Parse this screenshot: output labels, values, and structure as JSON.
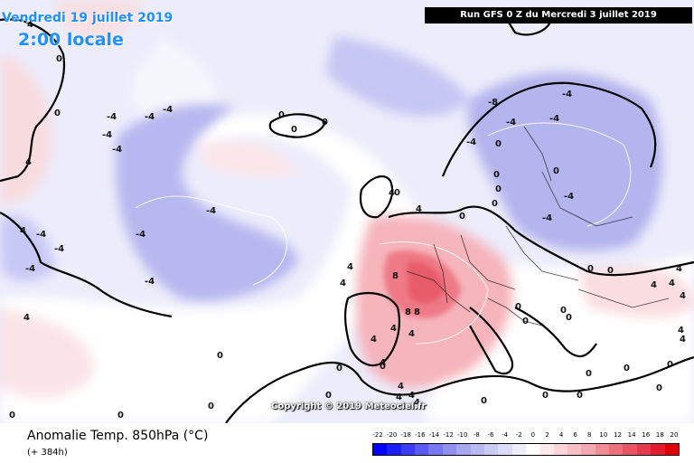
{
  "header": {
    "valid_date": "Vendredi 19 juillet 2019",
    "valid_time": "2:00 locale",
    "run_info": "Run GFS 0 Z du Mercredi 3 juillet 2019"
  },
  "copyright": "Copyright © 2019 Meteociel.fr",
  "footer": {
    "title": "Anomalie Temp. 850hPa (°C)",
    "lead_time": "(+ 384h)"
  },
  "legend": {
    "labels": [
      "-22",
      "-20",
      "-18",
      "-16",
      "-14",
      "-12",
      "-10",
      "-8",
      "-6",
      "-4",
      "-2",
      "0",
      "2",
      "4",
      "6",
      "8",
      "10",
      "12",
      "14",
      "16",
      "18",
      "20"
    ],
    "colors": [
      "#0000ff",
      "#1e1efd",
      "#3c3cfb",
      "#5a5af9",
      "#7878f7",
      "#9090f3",
      "#a8a8f1",
      "#babaf3",
      "#cbcbf6",
      "#dcdcfa",
      "#ededfc",
      "#ffffff",
      "#fde8ea",
      "#fad4d8",
      "#f7c0c6",
      "#f4a8b0",
      "#f18c96",
      "#ee707c",
      "#eb5464",
      "#e8384c",
      "#e51c30",
      "#e00000"
    ]
  },
  "map_labels": [
    {
      "text": "4"
    },
    {
      "text": "0"
    },
    {
      "text": "0"
    },
    {
      "text": "4"
    },
    {
      "text": "4"
    },
    {
      "text": "-4"
    },
    {
      "text": "-4"
    },
    {
      "text": "-4"
    },
    {
      "text": "-4"
    },
    {
      "text": "-4"
    },
    {
      "text": "-4"
    },
    {
      "text": "-4"
    },
    {
      "text": "-4"
    },
    {
      "text": "-4"
    },
    {
      "text": "-4"
    },
    {
      "text": "-4"
    },
    {
      "text": "0"
    },
    {
      "text": "0"
    },
    {
      "text": "0"
    },
    {
      "text": "-8"
    },
    {
      "text": "-4"
    },
    {
      "text": "-4"
    },
    {
      "text": "-4"
    },
    {
      "text": "-4"
    },
    {
      "text": "-4"
    },
    {
      "text": "-4"
    },
    {
      "text": "0"
    },
    {
      "text": "0"
    },
    {
      "text": "0"
    },
    {
      "text": "0"
    },
    {
      "text": "0"
    },
    {
      "text": "0"
    },
    {
      "text": "4"
    },
    {
      "text": "4"
    },
    {
      "text": "4"
    },
    {
      "text": "4"
    },
    {
      "text": "8"
    },
    {
      "text": "8"
    },
    {
      "text": "8"
    },
    {
      "text": "4"
    },
    {
      "text": "4"
    },
    {
      "text": "4"
    },
    {
      "text": "4"
    },
    {
      "text": "0"
    },
    {
      "text": "0"
    },
    {
      "text": "0"
    },
    {
      "text": "0"
    },
    {
      "text": "0"
    },
    {
      "text": "0"
    },
    {
      "text": "0"
    },
    {
      "text": "0"
    },
    {
      "text": "0"
    },
    {
      "text": "4"
    },
    {
      "text": "4"
    },
    {
      "text": "4"
    },
    {
      "text": "4"
    },
    {
      "text": "4"
    },
    {
      "text": "4"
    },
    {
      "text": "4"
    },
    {
      "text": "4"
    },
    {
      "text": "4"
    },
    {
      "text": "0"
    },
    {
      "text": "0"
    },
    {
      "text": "0"
    },
    {
      "text": "0"
    },
    {
      "text": "0"
    },
    {
      "text": "0"
    },
    {
      "text": "0"
    },
    {
      "text": "0"
    },
    {
      "text": "4"
    },
    {
      "text": "4"
    },
    {
      "text": "0"
    },
    {
      "text": "0"
    },
    {
      "text": "0"
    },
    {
      "text": "0"
    }
  ]
}
